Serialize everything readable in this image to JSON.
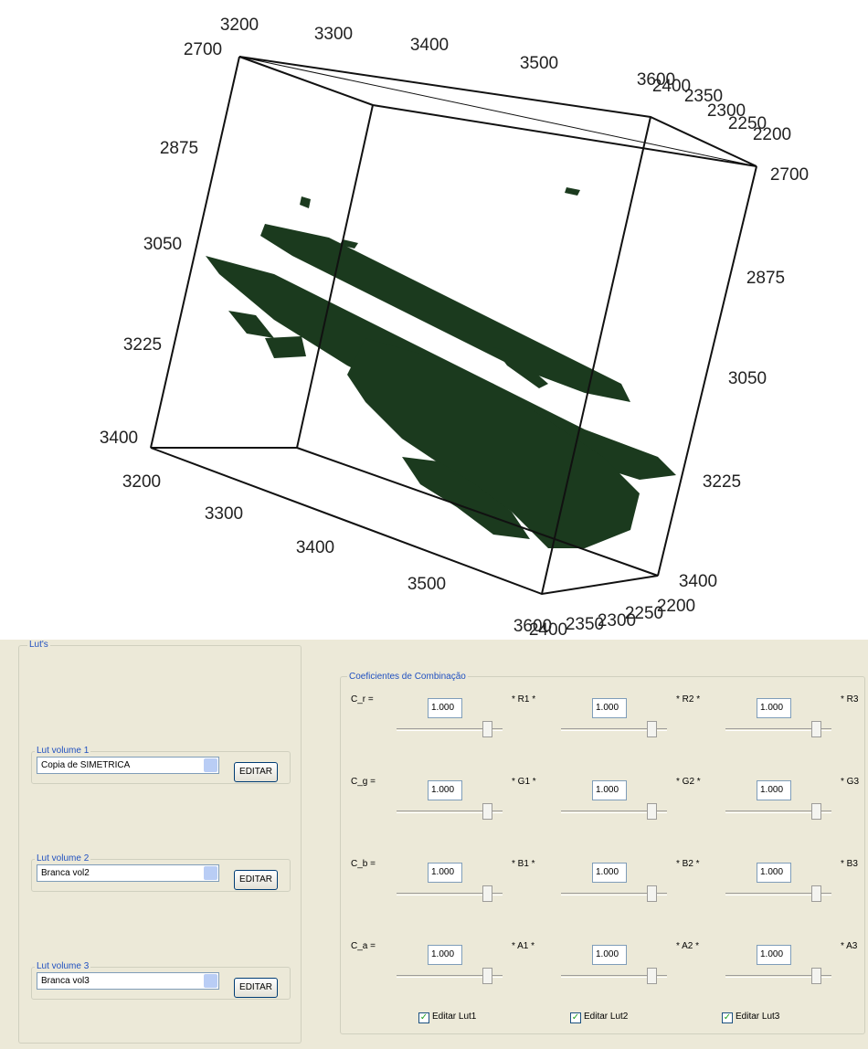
{
  "plot": {
    "top_front_ticks": [
      3200,
      3300,
      3400,
      3500,
      3600
    ],
    "bottom_front_ticks": [
      3200,
      3300,
      3400,
      3500,
      3600
    ],
    "left_ticks": [
      2700,
      2875,
      3050,
      3225,
      3400
    ],
    "right_ticks": [
      2700,
      2875,
      3050,
      3225,
      3400
    ],
    "top_depth_ticks": [
      2400,
      2350,
      2300,
      2250,
      2200
    ],
    "bottom_depth_ticks": [
      2400,
      2350,
      2300,
      2250,
      2200
    ]
  },
  "lut_panel": {
    "title": "Lut's",
    "groups": [
      {
        "label": "Lut volume 1",
        "selected": "Copia de SIMETRICA",
        "button": "EDITAR"
      },
      {
        "label": "Lut volume 2",
        "selected": "Branca vol2",
        "button": "EDITAR"
      },
      {
        "label": "Lut volume 3",
        "selected": "Branca vol3",
        "button": "EDITAR"
      }
    ]
  },
  "coef_panel": {
    "title": "Coeficientes de Combinação",
    "rows": [
      {
        "label": "C_r =",
        "cells": [
          {
            "value": "1.000",
            "tag": "* R1 *"
          },
          {
            "value": "1.000",
            "tag": "* R2 *"
          },
          {
            "value": "1.000",
            "tag": "* R3"
          }
        ]
      },
      {
        "label": "C_g =",
        "cells": [
          {
            "value": "1.000",
            "tag": "* G1 *"
          },
          {
            "value": "1.000",
            "tag": "* G2 *"
          },
          {
            "value": "1.000",
            "tag": "* G3"
          }
        ]
      },
      {
        "label": "C_b =",
        "cells": [
          {
            "value": "1.000",
            "tag": "* B1 *"
          },
          {
            "value": "1.000",
            "tag": "* B2 *"
          },
          {
            "value": "1.000",
            "tag": "* B3"
          }
        ]
      },
      {
        "label": "C_a =",
        "cells": [
          {
            "value": "1.000",
            "tag": "* A1 *"
          },
          {
            "value": "1.000",
            "tag": "* A2 *"
          },
          {
            "value": "1.000",
            "tag": "* A3"
          }
        ]
      }
    ],
    "checkboxes": [
      {
        "label": "Editar Lut1",
        "checked": true
      },
      {
        "label": "Editar Lut2",
        "checked": true
      },
      {
        "label": "Editar Lut3",
        "checked": true
      }
    ]
  }
}
